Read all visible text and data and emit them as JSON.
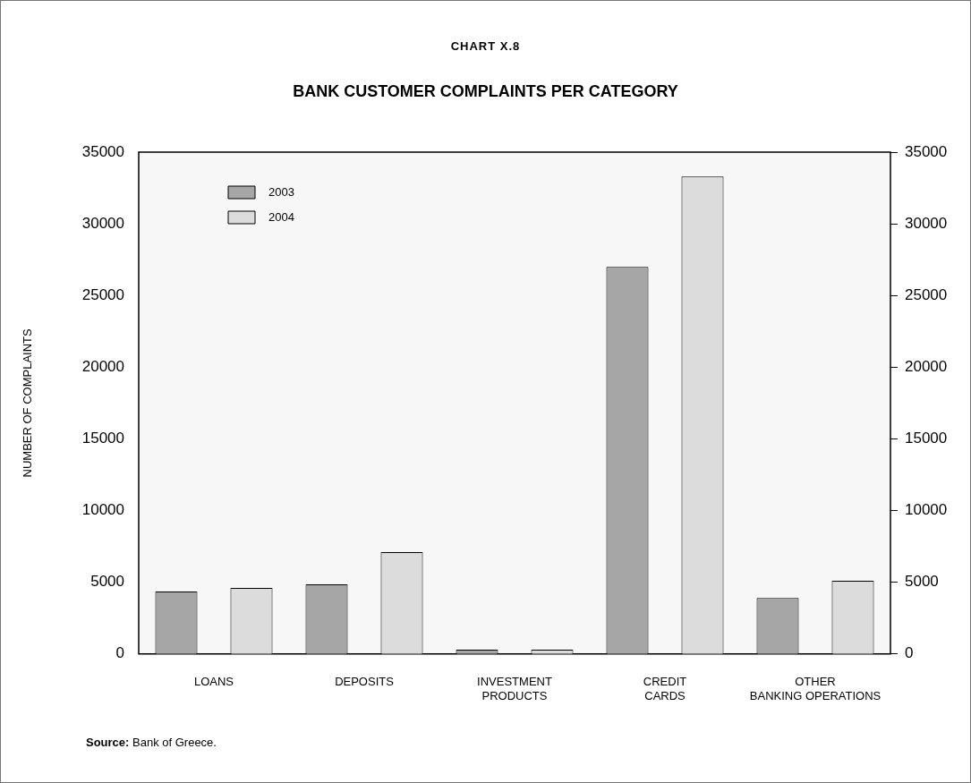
{
  "chart_data": {
    "type": "bar",
    "title": "CHART X.8",
    "subtitle": "BANK CUSTOMER COMPLAINTS PER CATEGORY",
    "categories": [
      "LOANS",
      "DEPOSITS",
      "INVESTMENT\nPRODUCTS",
      "CREDIT\nCARDS",
      "OTHER\nBANKING OPERATIONS"
    ],
    "series": [
      {
        "name": "2003",
        "color": "#a6a6a6",
        "values": [
          4350,
          4850,
          300,
          27000,
          3900
        ]
      },
      {
        "name": "2004",
        "color": "#dcdcdc",
        "values": [
          4600,
          7100,
          300,
          33300,
          5100
        ]
      }
    ],
    "ylabel": "NUMBER OF COMPLAINTS",
    "ylim": [
      0,
      35000
    ],
    "yticks": [
      0,
      5000,
      10000,
      15000,
      20000,
      25000,
      30000,
      35000
    ],
    "y2lim": [
      0,
      35000
    ],
    "y2ticks": [
      0,
      5000,
      10000,
      15000,
      20000,
      25000,
      30000,
      35000
    ],
    "legend": "top left",
    "grid": false,
    "annotations": [
      "Source: Bank of Greece."
    ]
  }
}
